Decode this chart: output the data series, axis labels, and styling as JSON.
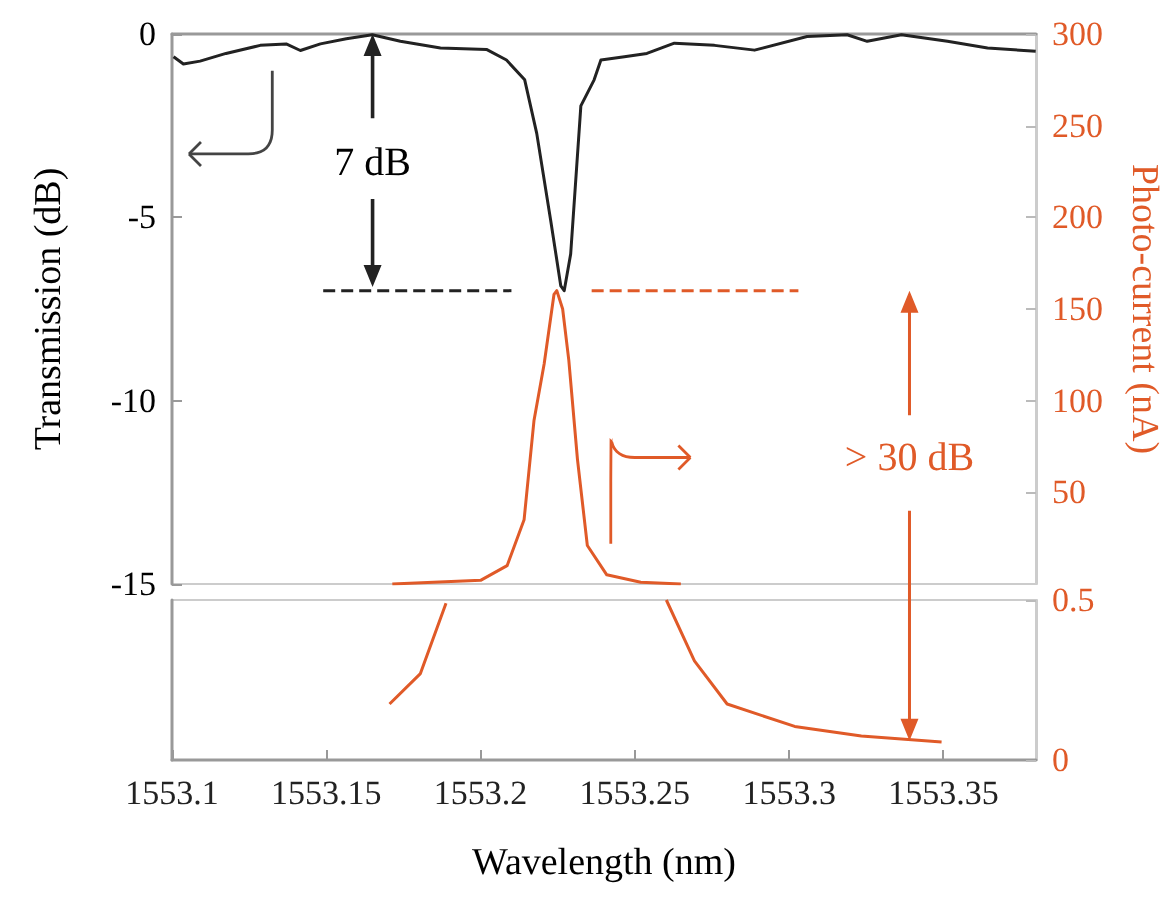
{
  "chart_data": [
    {
      "type": "line",
      "ylabel": "Transmission (dB)",
      "y2label": "Photo-current (nA)",
      "xlim": [
        1553.1,
        1553.38
      ],
      "ylim": [
        -15,
        0
      ],
      "yticks": [
        -15,
        -10,
        -5,
        0
      ],
      "y2lim": [
        0,
        300
      ],
      "y2ticks": [
        50,
        100,
        150,
        200,
        250,
        300
      ],
      "tick_labels": "y",
      "marker": "none",
      "annotations": [
        "7 dB",
        "> 30 dB"
      ],
      "series": [
        {
          "color": "#222222",
          "x": [
            1553.1005,
            1553.1037,
            1553.1091,
            1553.1175,
            1553.1286,
            1553.137,
            1553.1416,
            1553.1481,
            1553.1565,
            1553.1649,
            1553.174,
            1553.187,
            1553.2019,
            1553.2084,
            1553.2143,
            1553.2182,
            1553.2227,
            1553.226,
            1553.2271,
            1553.2292,
            1553.2325,
            1553.2368,
            1553.239,
            1553.2466,
            1553.2539,
            1553.2628,
            1553.2758,
            1553.2888,
            1553.3058,
            1553.3188,
            1553.3253,
            1553.3364,
            1553.3513,
            1553.3643,
            1553.3799
          ],
          "values": [
            -0.62,
            -0.82,
            -0.74,
            -0.53,
            -0.31,
            -0.27,
            -0.45,
            -0.27,
            -0.13,
            -0.02,
            -0.2,
            -0.38,
            -0.42,
            -0.71,
            -1.25,
            -2.71,
            -5.07,
            -6.87,
            -7.0,
            -6.0,
            -1.96,
            -1.25,
            -0.71,
            -0.62,
            -0.53,
            -0.25,
            -0.31,
            -0.44,
            -0.07,
            -0.02,
            -0.2,
            -0.02,
            -0.2,
            -0.38,
            -0.47
          ]
        },
        {
          "color": "#e05a28",
          "axis": "y2",
          "x": [
            1553.1714,
            1553.2,
            1553.2086,
            1553.2141,
            1553.2173,
            1553.2206,
            1553.2238,
            1553.2247,
            1553.2266,
            1553.2286,
            1553.2314,
            1553.2346,
            1553.2409,
            1553.2519,
            1553.2649
          ],
          "values": [
            0,
            2,
            10,
            35,
            89,
            120,
            158,
            160,
            150,
            122,
            68,
            21,
            5,
            1,
            0
          ]
        },
        {
          "color": "#222222",
          "line_style": "dashed",
          "x": [
            1553.149,
            1553.21
          ],
          "values": [
            -7,
            -7
          ]
        },
        {
          "color": "#e05a28",
          "axis": "y2",
          "line_style": "dashed",
          "x": [
            1553.236,
            1553.303
          ],
          "values": [
            160,
            160
          ]
        }
      ]
    },
    {
      "type": "line",
      "xlabel": "Wavelength (nm)",
      "xlim": [
        1553.1,
        1553.38
      ],
      "xticks": [
        1553.1,
        1553.15,
        1553.2,
        1553.25,
        1553.3,
        1553.35
      ],
      "y2lim": [
        0,
        0.5
      ],
      "y2ticks": [
        0,
        0.5
      ],
      "marker": "none",
      "series": [
        {
          "color": "#e05a28",
          "axis": "y2",
          "x": [
            1553.1705,
            1553.1805,
            1553.1888,
            1553.22,
            1553.2602,
            1553.2693,
            1553.2799,
            1553.3018,
            1553.3234,
            1553.3494
          ],
          "values": [
            0.175,
            0.27,
            0.49,
            null,
            0.5,
            0.31,
            0.175,
            0.105,
            0.075,
            0.056
          ]
        }
      ]
    }
  ]
}
